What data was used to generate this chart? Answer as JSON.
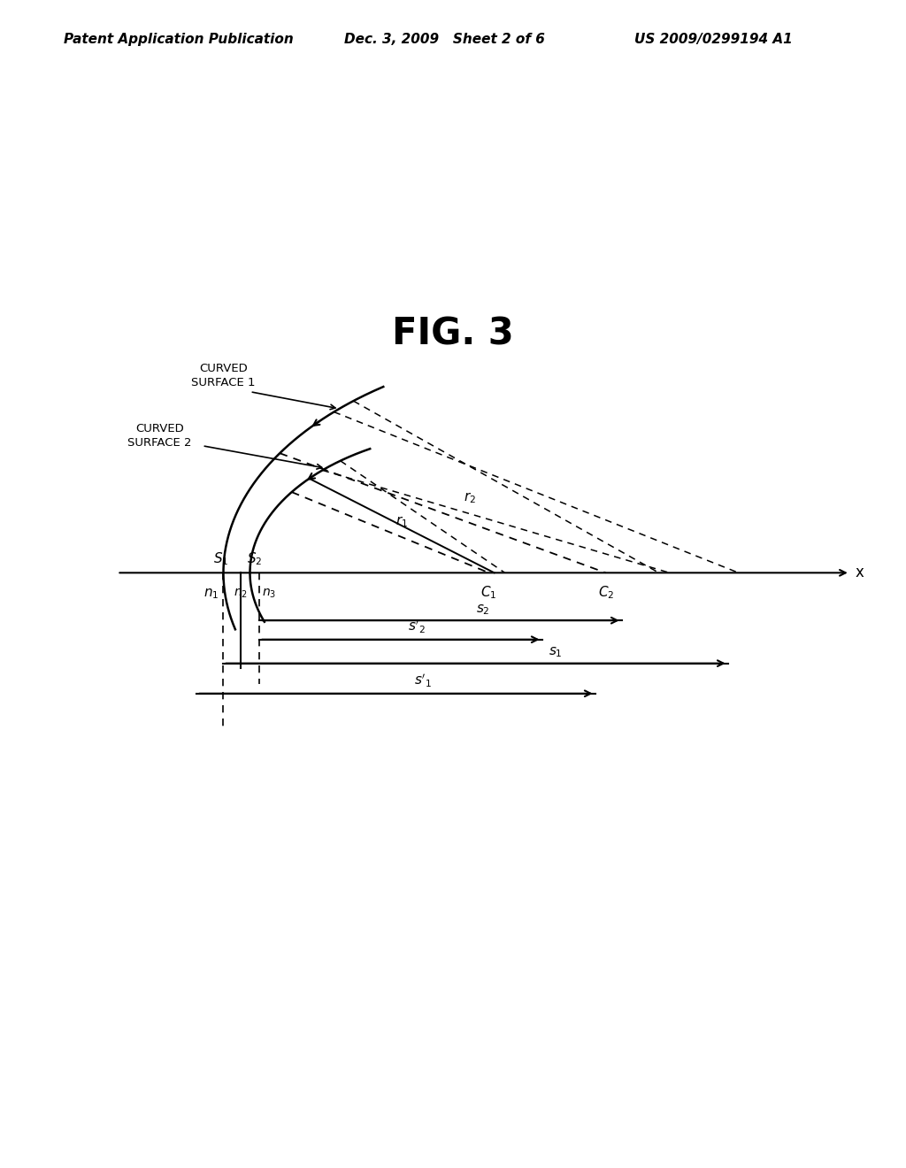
{
  "title": "FIG. 3",
  "header_left": "Patent Application Publication",
  "header_mid": "Dec. 3, 2009   Sheet 2 of 6",
  "header_right": "US 2009/0299194 A1",
  "background_color": "#ffffff",
  "text_color": "#000000",
  "fig_title_fontsize": 30,
  "header_fontsize": 11,
  "diagram_label_fontsize": 11,
  "diagram_subscript_fontsize": 11
}
